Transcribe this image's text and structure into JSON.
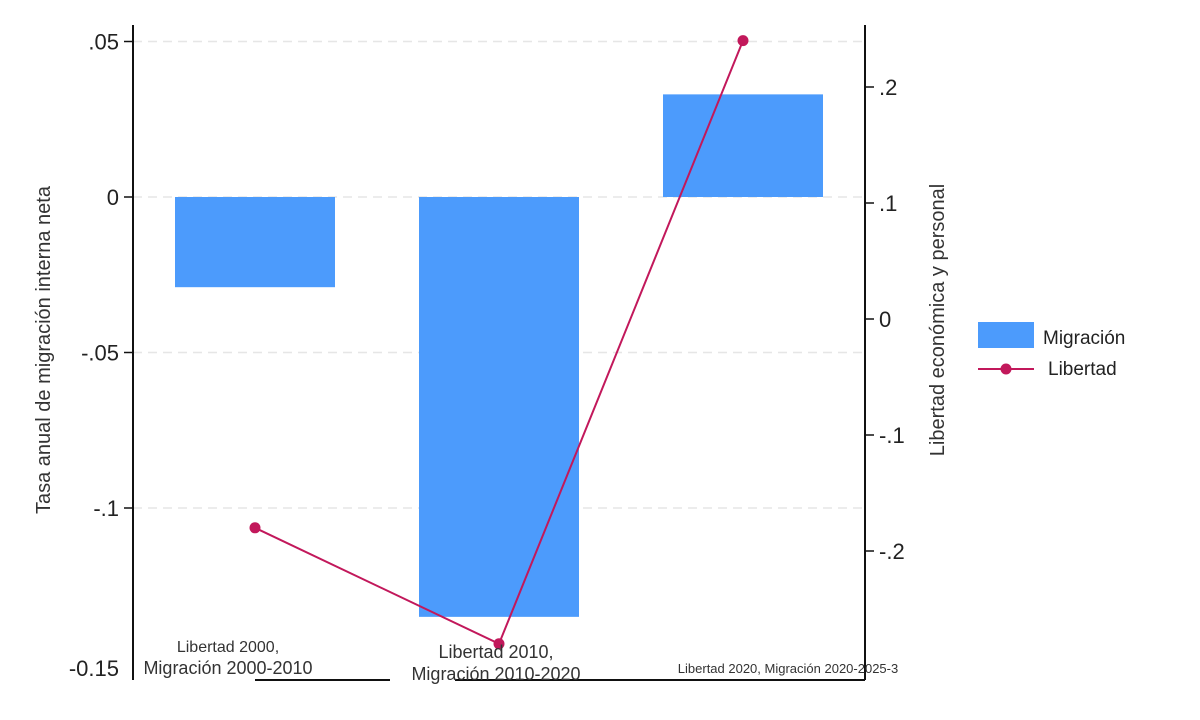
{
  "chart_data": {
    "type": "bar",
    "categories": [
      [
        "Libertad 2000,",
        "Migración 2000-2010"
      ],
      [
        "Libertad 2010,",
        "Migración 2010-2020"
      ],
      [
        "Libertad 2020, Migración 2020-2025-3"
      ]
    ],
    "series": [
      {
        "name": "Migración",
        "type": "bar",
        "axis": "left",
        "color": "#4c9bfc",
        "values": [
          -0.029,
          -0.135,
          0.033
        ]
      },
      {
        "name": "Libertad",
        "type": "line",
        "axis": "right",
        "color": "#c2185b",
        "values": [
          -0.18,
          -0.28,
          0.24
        ]
      }
    ],
    "y_left": {
      "label": "Tasa anual de migración interna neta",
      "ylim": [
        -0.15,
        0.05
      ],
      "ticks": [
        {
          "value": 0.05,
          "label": ".05"
        },
        {
          "value": 0,
          "label": "0"
        },
        {
          "value": -0.05,
          "label": "-.05"
        },
        {
          "value": -0.1,
          "label": "-.1"
        },
        {
          "value": -0.15,
          "label": "-0.15"
        }
      ]
    },
    "y_right": {
      "label": "Libertad económica y personal",
      "ylim": [
        -0.29,
        0.25
      ],
      "ticks": [
        {
          "value": 0.2,
          "label": ".2"
        },
        {
          "value": 0.1,
          "label": ".1"
        },
        {
          "value": 0,
          "label": "0"
        },
        {
          "value": -0.1,
          "label": "-.1"
        },
        {
          "value": -0.2,
          "label": "-.2"
        }
      ]
    },
    "grid": true,
    "legend": "right"
  }
}
